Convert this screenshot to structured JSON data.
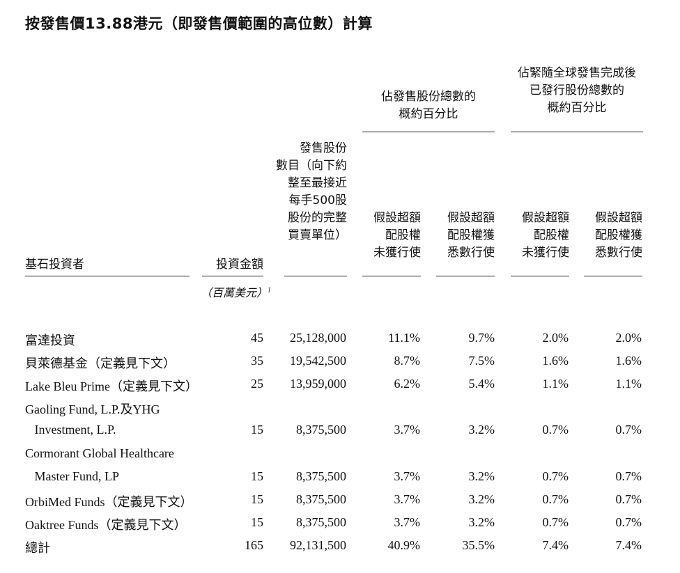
{
  "title": "按發售價13.88港元（即發售價範圍的高位數）計算",
  "headers": {
    "group1": [
      "佔發售股份總數的",
      "概約百分比"
    ],
    "group2": [
      "佔緊隨全球發售完成後",
      "已發行股份總數的",
      "概約百分比"
    ],
    "investor": "基石投資者",
    "amount": "投資金額",
    "shares": [
      "發售股份",
      "數目（向下約",
      "整至最接近",
      "每手500股",
      "股份的完整",
      "買賣單位）"
    ],
    "p1": [
      "假設超額",
      "配股權",
      "未獲行使"
    ],
    "p2": [
      "假設超額",
      "配股權獲",
      "悉數行使"
    ],
    "p3": [
      "假設超額",
      "配股權",
      "未獲行使"
    ],
    "p4": [
      "假設超額",
      "配股權獲",
      "悉數行使"
    ],
    "unit": "（百萬美元）",
    "unit_sup": "1"
  },
  "rows": [
    {
      "name": "富達投資",
      "amount": "45",
      "shares": "25,128,000",
      "p1": "11.1%",
      "p2": "9.7%",
      "p3": "2.0%",
      "p4": "2.0%"
    },
    {
      "name": "貝萊德基金（定義見下文）",
      "amount": "35",
      "shares": "19,542,500",
      "p1": "8.7%",
      "p2": "7.5%",
      "p3": "1.6%",
      "p4": "1.6%"
    },
    {
      "name": "Lake Bleu Prime（定義見下文）",
      "amount": "25",
      "shares": "13,959,000",
      "p1": "6.2%",
      "p2": "5.4%",
      "p3": "1.1%",
      "p4": "1.1%"
    },
    {
      "name": "Gaoling Fund, L.P.及YHG",
      "amount": "",
      "shares": "",
      "p1": "",
      "p2": "",
      "p3": "",
      "p4": ""
    },
    {
      "name": "   Investment, L.P.",
      "amount": "15",
      "shares": "8,375,500",
      "p1": "3.7%",
      "p2": "3.2%",
      "p3": "0.7%",
      "p4": "0.7%"
    },
    {
      "name": "Cormorant Global Healthcare",
      "amount": "",
      "shares": "",
      "p1": "",
      "p2": "",
      "p3": "",
      "p4": ""
    },
    {
      "name": "   Master Fund, LP",
      "amount": "15",
      "shares": "8,375,500",
      "p1": "3.7%",
      "p2": "3.2%",
      "p3": "0.7%",
      "p4": "0.7%"
    },
    {
      "name": "OrbiMed Funds（定義見下文）",
      "amount": "15",
      "shares": "8,375,500",
      "p1": "3.7%",
      "p2": "3.2%",
      "p3": "0.7%",
      "p4": "0.7%"
    },
    {
      "name": "Oaktree Funds（定義見下文）",
      "amount": "15",
      "shares": "8,375,500",
      "p1": "3.7%",
      "p2": "3.2%",
      "p3": "0.7%",
      "p4": "0.7%"
    },
    {
      "name": "總計",
      "amount": "165",
      "shares": "92,131,500",
      "p1": "40.9%",
      "p2": "35.5%",
      "p3": "7.4%",
      "p4": "7.4%"
    }
  ]
}
